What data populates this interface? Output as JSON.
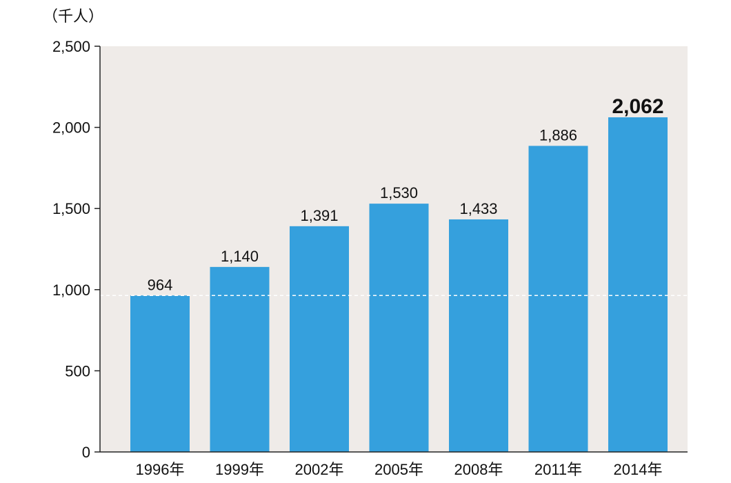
{
  "chart_data": {
    "type": "bar",
    "unit_label": "（千人）",
    "categories": [
      "1996年",
      "1999年",
      "2002年",
      "2005年",
      "2008年",
      "2011年",
      "2014年"
    ],
    "values": [
      964,
      1140,
      1391,
      1530,
      1433,
      1886,
      2062
    ],
    "value_labels": [
      "964",
      "1,140",
      "1,391",
      "1,530",
      "1,433",
      "1,886",
      "2,062"
    ],
    "highlight_value_index": 6,
    "ylim": [
      0,
      2500
    ],
    "y_ticks": [
      0,
      500,
      1000,
      1500,
      2000,
      2500
    ],
    "y_tick_labels": [
      "0",
      "500",
      "1,000",
      "1,500",
      "2,000",
      "2,500"
    ],
    "reference_line_value": 964,
    "grid": false,
    "legend": "none",
    "colors": {
      "bar": "#35A0DD",
      "plot_background": "#EFEBE8",
      "axis": "#222222",
      "reference_line": "#ffffff"
    }
  }
}
